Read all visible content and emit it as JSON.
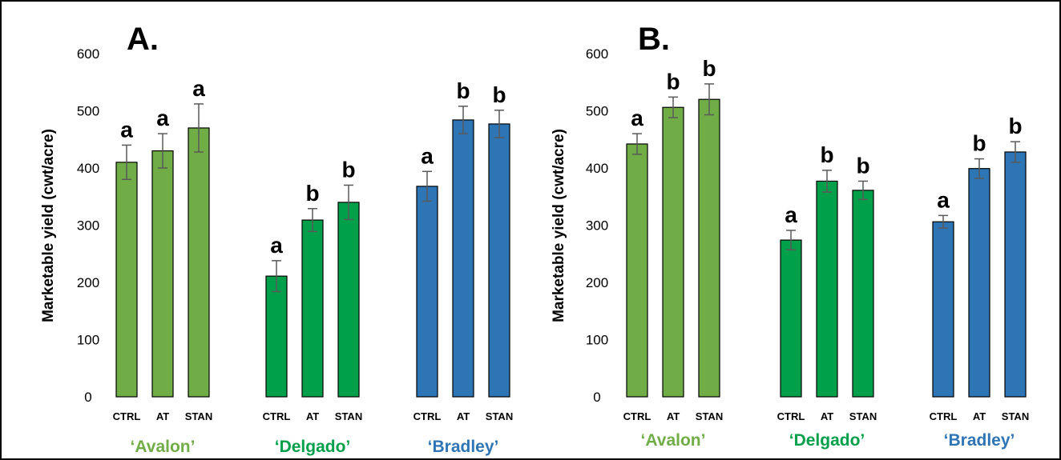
{
  "chart_data": [
    {
      "type": "bar",
      "panel_label": "A.",
      "ylabel": "Marketable yield (cwt/acre)",
      "ylim": [
        0,
        600
      ],
      "yticks": [
        0,
        100,
        200,
        300,
        400,
        500,
        600
      ],
      "grid": false,
      "groups": [
        {
          "name": "‘Avalon’",
          "color": "#70ad47",
          "categories": [
            "CTRL",
            "AT",
            "STAN"
          ],
          "values": [
            410,
            430,
            470
          ],
          "errors": [
            30,
            30,
            42
          ],
          "letters": [
            "a",
            "a",
            "a"
          ]
        },
        {
          "name": "‘Delgado’",
          "color": "#00a04a",
          "categories": [
            "CTRL",
            "AT",
            "STAN"
          ],
          "values": [
            211,
            309,
            340
          ],
          "errors": [
            27,
            20,
            30
          ],
          "letters": [
            "a",
            "b",
            "b"
          ]
        },
        {
          "name": "‘Bradley’",
          "color": "#2e75b6",
          "categories": [
            "CTRL",
            "AT",
            "STAN"
          ],
          "values": [
            368,
            484,
            477
          ],
          "errors": [
            26,
            24,
            24
          ],
          "letters": [
            "a",
            "b",
            "b"
          ]
        }
      ]
    },
    {
      "type": "bar",
      "panel_label": "B.",
      "ylabel": "Marketable yield (cwt/acre)",
      "ylim": [
        0,
        600
      ],
      "yticks": [
        0,
        100,
        200,
        300,
        400,
        500,
        600
      ],
      "grid": false,
      "groups": [
        {
          "name": "‘Avalon’",
          "color": "#70ad47",
          "categories": [
            "CTRL",
            "AT",
            "STAN"
          ],
          "values": [
            442,
            506,
            520
          ],
          "errors": [
            18,
            18,
            27
          ],
          "letters": [
            "a",
            "b",
            "b"
          ]
        },
        {
          "name": "‘Delgado’",
          "color": "#00a04a",
          "categories": [
            "CTRL",
            "AT",
            "STAN"
          ],
          "values": [
            274,
            377,
            361
          ],
          "errors": [
            17,
            19,
            16
          ],
          "letters": [
            "a",
            "b",
            "b"
          ]
        },
        {
          "name": "‘Bradley’",
          "color": "#2e75b6",
          "categories": [
            "CTRL",
            "AT",
            "STAN"
          ],
          "values": [
            306,
            399,
            428
          ],
          "errors": [
            11,
            17,
            18
          ],
          "letters": [
            "a",
            "b",
            "b"
          ]
        }
      ]
    }
  ]
}
